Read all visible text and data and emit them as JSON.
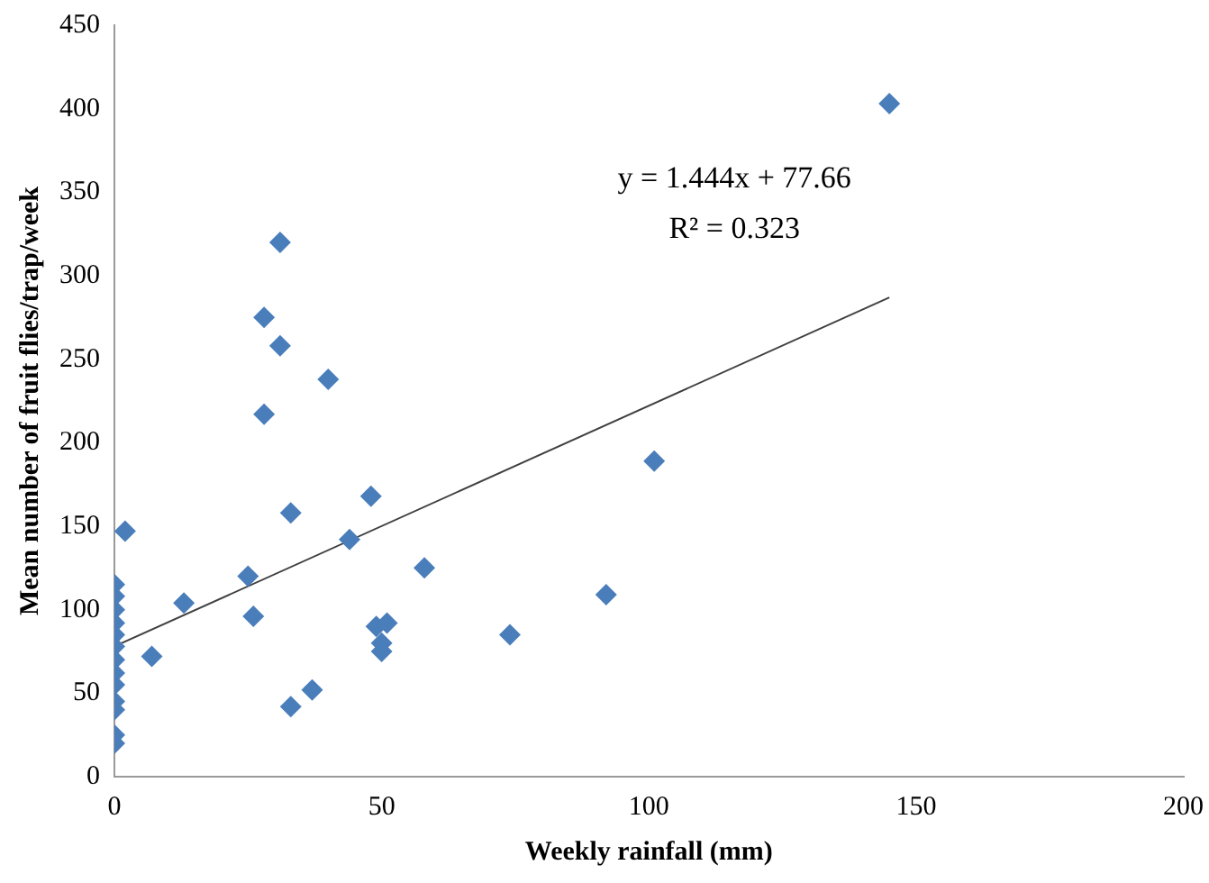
{
  "chart_data": {
    "type": "scatter",
    "xlabel": "Weekly rainfall (mm)",
    "ylabel": "Mean number of fruit flies/trap/week",
    "xlim": [
      0,
      200
    ],
    "xticks": [
      0,
      50,
      100,
      150,
      200
    ],
    "ylim": [
      0,
      450
    ],
    "yticks": [
      0,
      50,
      100,
      150,
      200,
      250,
      300,
      350,
      400,
      450
    ],
    "grid": false,
    "legend": false,
    "marker": "diamond",
    "series": [
      {
        "color": "#4a7ebb",
        "x": [
          0,
          0,
          0,
          0,
          0,
          0,
          0,
          0,
          0,
          0,
          0,
          0,
          0,
          2,
          7,
          13,
          25,
          26,
          28,
          28,
          31,
          31,
          33,
          33,
          37,
          40,
          44,
          48,
          49,
          50,
          50,
          51,
          58,
          74,
          92,
          101,
          145
        ],
        "values": [
          115,
          108,
          100,
          92,
          85,
          78,
          70,
          62,
          55,
          45,
          40,
          25,
          20,
          147,
          72,
          104,
          120,
          96,
          217,
          275,
          320,
          258,
          158,
          42,
          52,
          238,
          142,
          168,
          90,
          80,
          75,
          92,
          125,
          85,
          109,
          189,
          403
        ]
      },
      {
        "type": "line",
        "color": "#404040",
        "marker": "none",
        "x": [
          0,
          145
        ],
        "values": [
          78,
          287
        ]
      }
    ],
    "annotations": [
      "y = 1.444x + 77.66",
      "R² = 0.323"
    ]
  }
}
